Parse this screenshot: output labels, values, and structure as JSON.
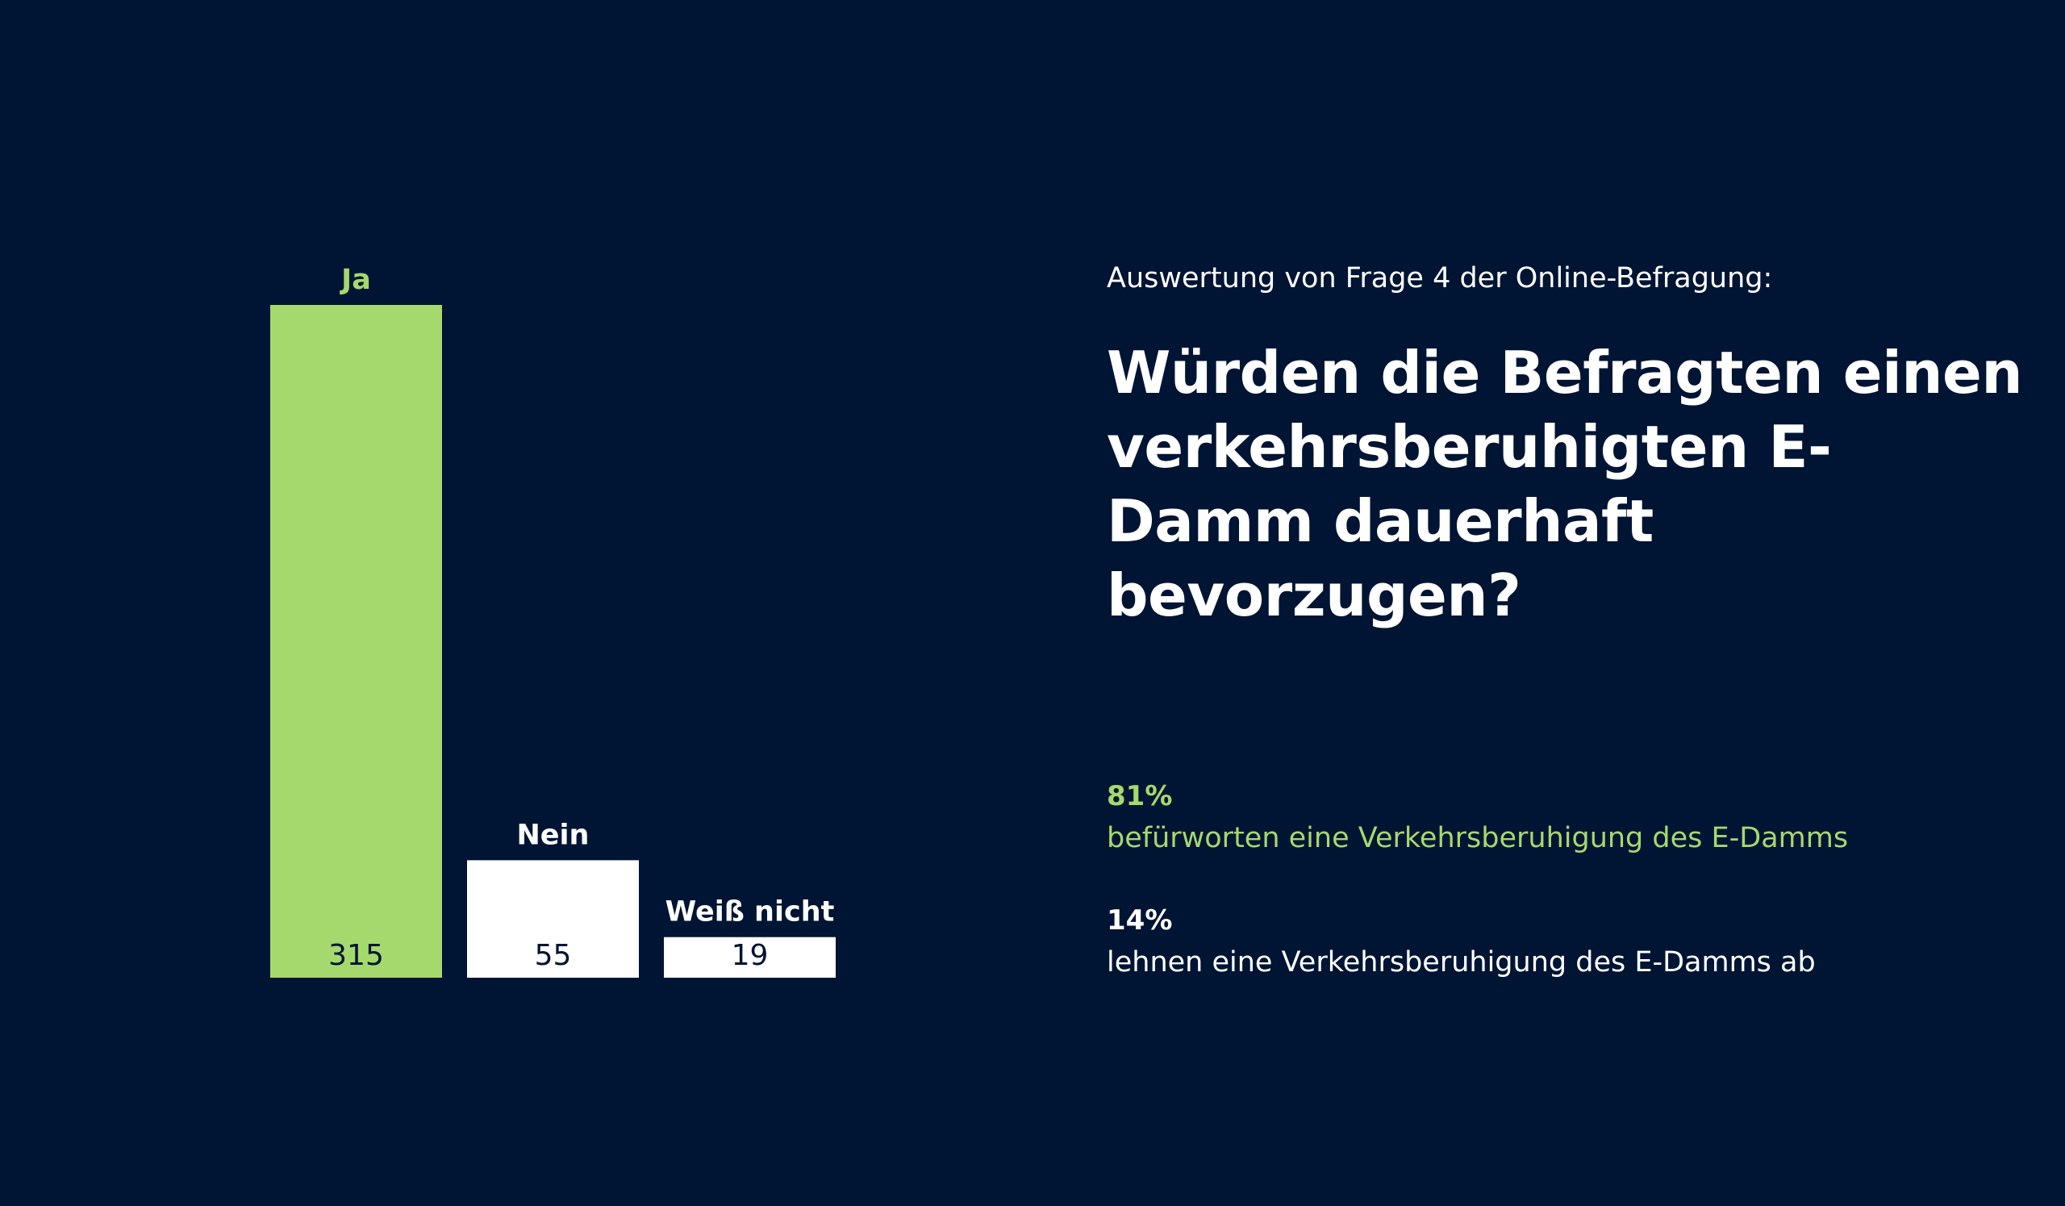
{
  "colors": {
    "background": "#001433",
    "accent_green": "#a5d96e",
    "white": "#ffffff",
    "bar_value_text": "#001433"
  },
  "chart_data": {
    "type": "bar",
    "categories": [
      "Ja",
      "Nein",
      "Weiß nicht"
    ],
    "values": [
      315,
      55,
      19
    ],
    "value_labels": [
      "315",
      "55",
      "19"
    ],
    "bar_colors": [
      "#a5d96e",
      "#ffffff",
      "#ffffff"
    ],
    "category_label_colors": [
      "#a5d96e",
      "#ffffff",
      "#ffffff"
    ],
    "ylim": [
      0,
      315
    ],
    "grid": false,
    "legend": "none"
  },
  "header": {
    "subtitle": "Auswertung von Frage 4 der Online-Befragung:",
    "question": "Würden die Befragten einen verkehrsberuhigten E-Damm dauerhaft bevorzugen?"
  },
  "stats": {
    "yes": {
      "percent": "81%",
      "text": "befürworten eine Verkehrsberuhigung des E-Damms"
    },
    "no": {
      "percent": "14%",
      "text": "lehnen eine Verkehrsberuhigung des E-Damms ab"
    }
  }
}
